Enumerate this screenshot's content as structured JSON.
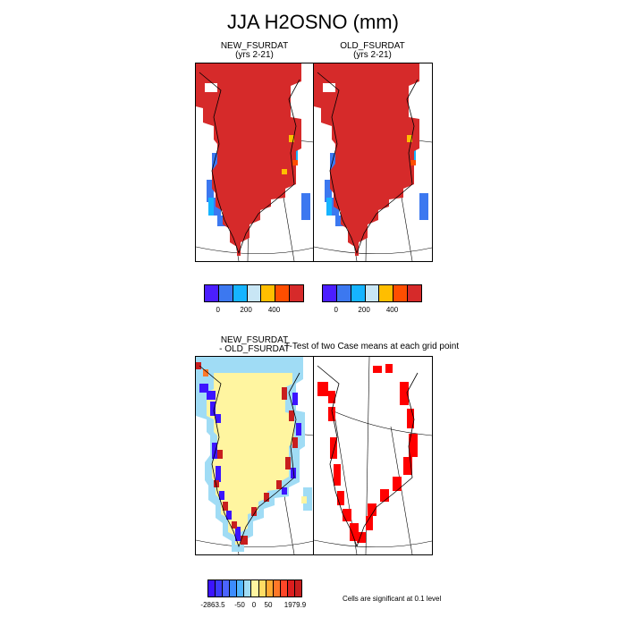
{
  "title": "JJA H2OSNO (mm)",
  "panels": {
    "new": {
      "title": "NEW_FSURDAT",
      "subtitle": "(yrs 2-21)"
    },
    "old": {
      "title": "OLD_FSURDAT",
      "subtitle": "(yrs 2-21)"
    },
    "diff": {
      "title_line1": "NEW_FSURDAT",
      "title_line2": "- OLD_FSURDAT"
    },
    "ttest": {
      "title": "T-Test of two Case means at each grid point"
    }
  },
  "colorbar_top": {
    "colors": [
      "#4b1eff",
      "#3c78f0",
      "#16b4ff",
      "#c8e6f5",
      "#ffbe00",
      "#ff4e00",
      "#d62a2a"
    ],
    "tick_labels": [
      "0",
      "200",
      "400"
    ]
  },
  "colorbar_diff": {
    "colors": [
      "#3c14ff",
      "#3c3cff",
      "#4b64ff",
      "#3c8cff",
      "#50b4ff",
      "#a0dcf5",
      "#fff5a0",
      "#ffdc64",
      "#ffaa32",
      "#ff7828",
      "#ff4628",
      "#dc1e1e",
      "#c81e1e"
    ],
    "tick_labels": [
      "-2863.5",
      "-50",
      "0",
      "50",
      "1979.9"
    ]
  },
  "significance_note": "Cells are significant at 0.1 level",
  "map_colors": {
    "snow_high": "#d62a2a",
    "snow_low_blue": "#3c78f0",
    "snow_mid_cyan": "#16b4ff",
    "diff_neutral": "#fff5a0",
    "diff_edge_blue": "#3c14ff",
    "diff_edge_red": "#c81e1e",
    "diff_light_blue": "#a0dcf5",
    "significant": "#ff0000"
  }
}
